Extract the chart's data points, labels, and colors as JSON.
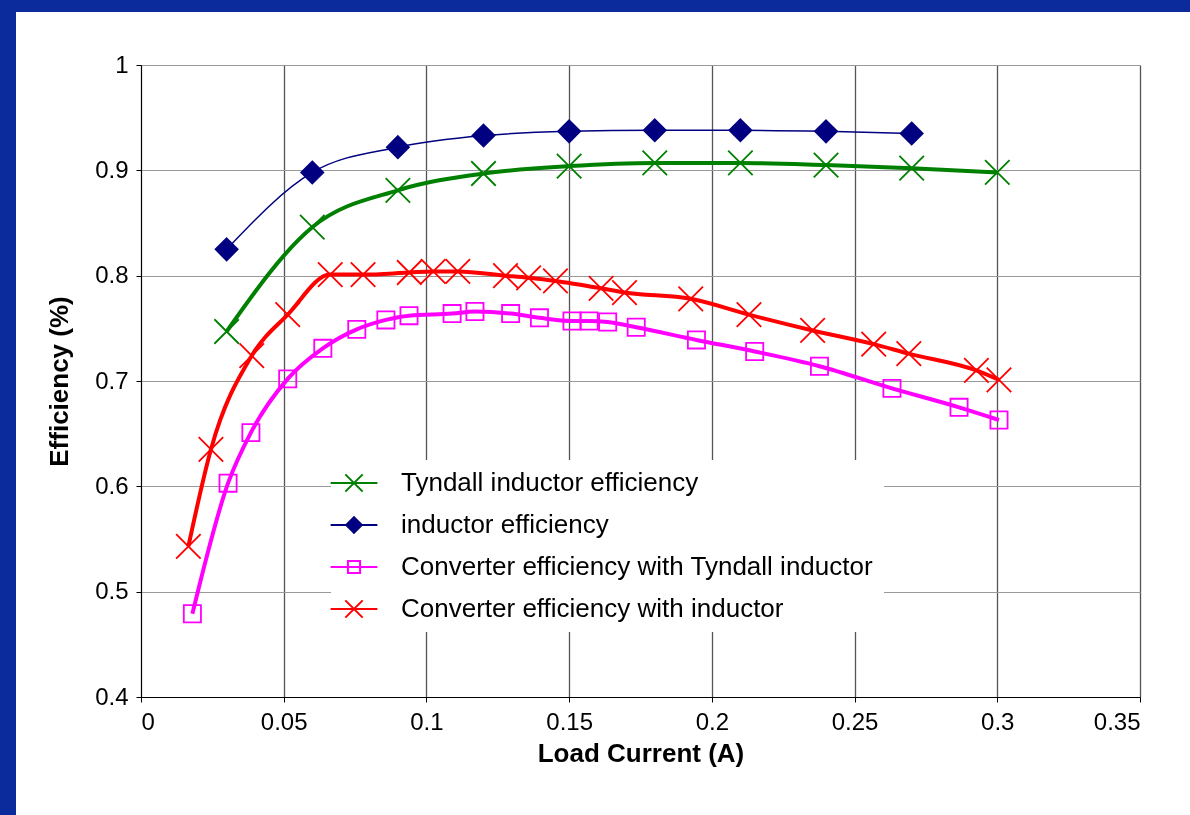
{
  "chart_data": {
    "type": "line",
    "xlabel": "Load Current (A)",
    "ylabel": "Efficiency (%)",
    "xlim": [
      0,
      0.35
    ],
    "xticks": [
      0,
      0.05,
      0.1,
      0.15,
      0.2,
      0.25,
      0.3,
      0.35
    ],
    "ylim": [
      0.4,
      1
    ],
    "yticks": [
      0.4,
      0.5,
      0.6,
      0.7,
      0.8,
      0.9,
      1
    ],
    "grid": true,
    "legend": "bottom",
    "series": [
      {
        "name": "Tyndall inductor efficiency",
        "color": "#008000",
        "marker": "cross",
        "x": [
          0.03,
          0.06,
          0.09,
          0.12,
          0.15,
          0.18,
          0.21,
          0.24,
          0.27,
          0.3
        ],
        "values": [
          0.747,
          0.846,
          0.881,
          0.897,
          0.904,
          0.907,
          0.907,
          0.905,
          0.902,
          0.898
        ]
      },
      {
        "name": "inductor efficiency",
        "color": "#000080",
        "marker": "diamond",
        "x": [
          0.03,
          0.06,
          0.09,
          0.12,
          0.15,
          0.18,
          0.21,
          0.24,
          0.27
        ],
        "values": [
          0.825,
          0.898,
          0.922,
          0.933,
          0.937,
          0.938,
          0.938,
          0.937,
          0.935
        ]
      },
      {
        "name": "Converter efficiency with Tyndall inductor",
        "color": "#ff00ff",
        "marker": "square",
        "x": [
          0.018,
          0.0305,
          0.0385,
          0.0514,
          0.0637,
          0.0756,
          0.0858,
          0.0939,
          0.109,
          0.117,
          0.1295,
          0.1396,
          0.151,
          0.157,
          0.1635,
          0.1735,
          0.1946,
          0.215,
          0.2377,
          0.2631,
          0.2866,
          0.3006
        ],
        "values": [
          0.479,
          0.603,
          0.651,
          0.702,
          0.731,
          0.749,
          0.758,
          0.762,
          0.764,
          0.766,
          0.764,
          0.76,
          0.757,
          0.757,
          0.756,
          0.751,
          0.739,
          0.728,
          0.714,
          0.693,
          0.675,
          0.663
        ]
      },
      {
        "name": "Converter efficiency with inductor",
        "color": "#ff0000",
        "marker": "cross",
        "x": [
          0.0166,
          0.0245,
          0.0388,
          0.0514,
          0.0663,
          0.0778,
          0.094,
          0.1024,
          0.111,
          0.1277,
          0.1358,
          0.1452,
          0.1612,
          0.1694,
          0.1926,
          0.213,
          0.2353,
          0.2567,
          0.269,
          0.2927,
          0.3006
        ],
        "values": [
          0.543,
          0.635,
          0.724,
          0.763,
          0.801,
          0.801,
          0.803,
          0.804,
          0.804,
          0.8,
          0.798,
          0.795,
          0.788,
          0.784,
          0.778,
          0.763,
          0.748,
          0.735,
          0.726,
          0.71,
          0.701
        ]
      }
    ]
  }
}
